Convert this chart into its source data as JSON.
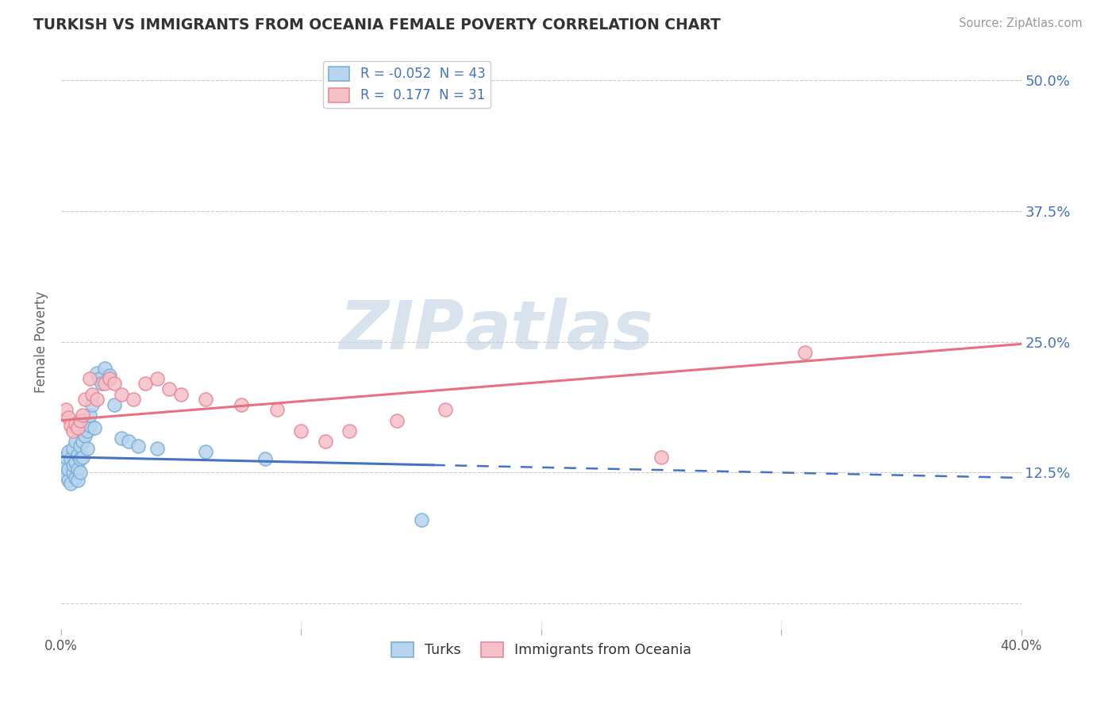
{
  "title": "TURKISH VS IMMIGRANTS FROM OCEANIA FEMALE POVERTY CORRELATION CHART",
  "source": "Source: ZipAtlas.com",
  "ylabel": "Female Poverty",
  "xmin": 0.0,
  "xmax": 0.4,
  "ymin": -0.025,
  "ymax": 0.525,
  "watermark_zip": "ZIP",
  "watermark_atlas": "atlas",
  "series1_facecolor": "#b8d4ee",
  "series1_edgecolor": "#7aafd4",
  "series2_facecolor": "#f5c0c8",
  "series2_edgecolor": "#e88898",
  "trend1_color": "#4472c4",
  "trend2_color": "#e87080",
  "turks_x": [
    0.001,
    0.002,
    0.002,
    0.003,
    0.003,
    0.003,
    0.004,
    0.004,
    0.005,
    0.005,
    0.005,
    0.006,
    0.006,
    0.006,
    0.007,
    0.007,
    0.007,
    0.008,
    0.008,
    0.008,
    0.009,
    0.009,
    0.01,
    0.01,
    0.011,
    0.011,
    0.012,
    0.012,
    0.013,
    0.014,
    0.015,
    0.016,
    0.017,
    0.018,
    0.02,
    0.022,
    0.025,
    0.028,
    0.032,
    0.04,
    0.06,
    0.085,
    0.15
  ],
  "turks_y": [
    0.13,
    0.122,
    0.14,
    0.118,
    0.128,
    0.145,
    0.115,
    0.138,
    0.125,
    0.132,
    0.148,
    0.12,
    0.135,
    0.155,
    0.128,
    0.142,
    0.118,
    0.138,
    0.15,
    0.125,
    0.155,
    0.14,
    0.16,
    0.175,
    0.165,
    0.148,
    0.17,
    0.18,
    0.19,
    0.168,
    0.22,
    0.215,
    0.21,
    0.225,
    0.218,
    0.19,
    0.158,
    0.155,
    0.15,
    0.148,
    0.145,
    0.138,
    0.08
  ],
  "oceania_x": [
    0.002,
    0.003,
    0.004,
    0.005,
    0.006,
    0.007,
    0.008,
    0.009,
    0.01,
    0.012,
    0.013,
    0.015,
    0.018,
    0.02,
    0.022,
    0.025,
    0.03,
    0.035,
    0.04,
    0.045,
    0.05,
    0.06,
    0.075,
    0.09,
    0.1,
    0.11,
    0.12,
    0.14,
    0.16,
    0.25,
    0.31
  ],
  "oceania_y": [
    0.185,
    0.178,
    0.17,
    0.165,
    0.172,
    0.168,
    0.175,
    0.18,
    0.195,
    0.215,
    0.2,
    0.195,
    0.21,
    0.215,
    0.21,
    0.2,
    0.195,
    0.21,
    0.215,
    0.205,
    0.2,
    0.195,
    0.19,
    0.185,
    0.165,
    0.155,
    0.165,
    0.175,
    0.185,
    0.14,
    0.24
  ],
  "trend1_x_solid_end": 0.155,
  "trend1_slope": -0.052,
  "trend2_slope": 0.177
}
